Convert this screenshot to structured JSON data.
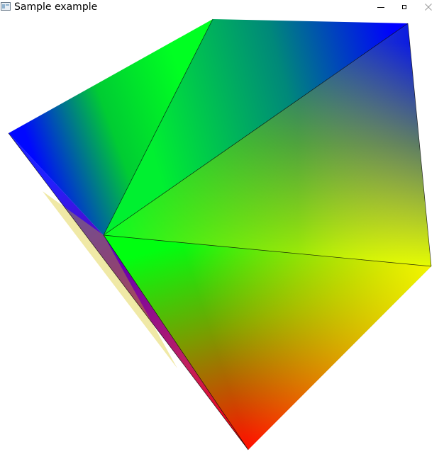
{
  "window": {
    "title": "Sample example",
    "app_icon": "window-app-icon",
    "controls": [
      {
        "name": "minimize-button",
        "icon": "minimize-icon"
      },
      {
        "name": "maximize-button",
        "icon": "maximize-icon"
      },
      {
        "name": "close-button",
        "icon": "close-icon"
      }
    ]
  },
  "scene": {
    "description_colors": {
      "red": "#ff0000",
      "green": "#00ff00",
      "blue": "#0000ff",
      "yellow": "#ffff00",
      "edge": "#000000"
    }
  }
}
